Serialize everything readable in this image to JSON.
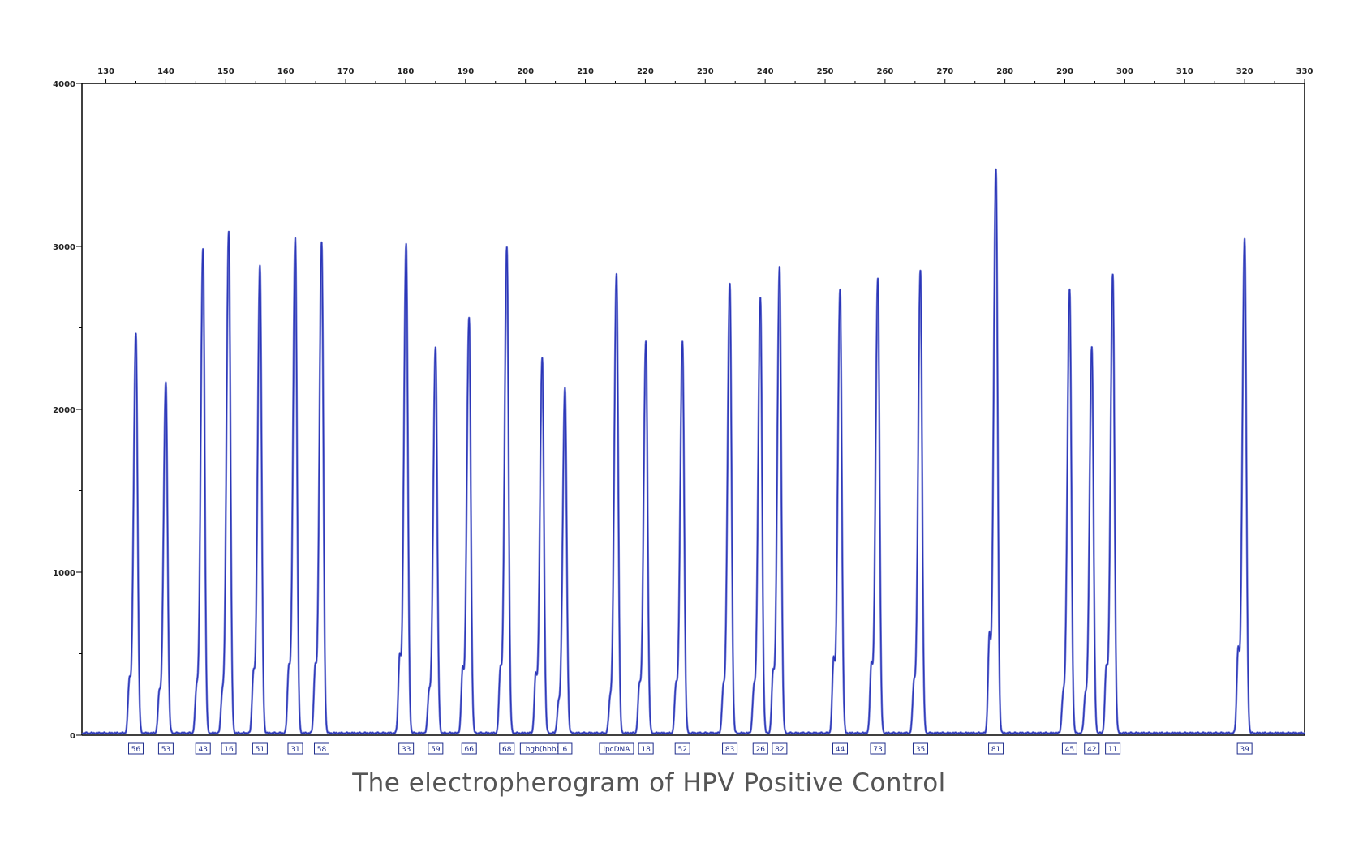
{
  "caption": "The electropherogram of HPV Positive Control",
  "colors": {
    "trace": "#2b36b8",
    "trace_light": "#7f88d8",
    "axis": "#000000",
    "label_box": "#1f2d8c"
  },
  "chart_data": {
    "type": "line",
    "title": "",
    "xlabel": "",
    "ylabel": "",
    "xlim": [
      126,
      330
    ],
    "ylim": [
      0,
      4000
    ],
    "x_ticks": [
      "130",
      "140",
      "150",
      "160",
      "170",
      "180",
      "190",
      "200",
      "210",
      "220",
      "230",
      "240",
      "250",
      "260",
      "270",
      "280",
      "290",
      "300",
      "310",
      "320",
      "330"
    ],
    "y_ticks": [
      "0",
      "1000",
      "2000",
      "3000",
      "4000"
    ],
    "grid": false,
    "baseline": 10,
    "peaks": [
      {
        "label": "56",
        "x": 135.0,
        "height": 2450,
        "shoulder": 300
      },
      {
        "label": "53",
        "x": 140.0,
        "height": 2150,
        "shoulder": 230
      },
      {
        "label": "43",
        "x": 146.2,
        "height": 2970,
        "shoulder": 250
      },
      {
        "label": "16",
        "x": 150.5,
        "height": 3080,
        "shoulder": 220
      },
      {
        "label": "51",
        "x": 155.7,
        "height": 2870,
        "shoulder": 340
      },
      {
        "label": "31",
        "x": 161.6,
        "height": 3040,
        "shoulder": 370
      },
      {
        "label": "58",
        "x": 166.0,
        "height": 3010,
        "shoulder": 370
      },
      {
        "label": "33",
        "x": 180.1,
        "height": 3000,
        "shoulder": 440
      },
      {
        "label": "59",
        "x": 185.0,
        "height": 2370,
        "shoulder": 230
      },
      {
        "label": "66",
        "x": 190.6,
        "height": 2550,
        "shoulder": 360
      },
      {
        "label": "68",
        "x": 196.9,
        "height": 2980,
        "shoulder": 360
      },
      {
        "label": "hgb(hbb)",
        "x": 202.8,
        "height": 2300,
        "shoulder": 330
      },
      {
        "label": "6",
        "x": 206.6,
        "height": 2120,
        "shoulder": 160
      },
      {
        "label": "ipcDNA",
        "x": 215.2,
        "height": 2820,
        "shoulder": 180
      },
      {
        "label": "18",
        "x": 220.1,
        "height": 2400,
        "shoulder": 270
      },
      {
        "label": "52",
        "x": 226.2,
        "height": 2400,
        "shoulder": 270
      },
      {
        "label": "83",
        "x": 234.1,
        "height": 2760,
        "shoulder": 250
      },
      {
        "label": "26",
        "x": 239.2,
        "height": 2670,
        "shoulder": 250
      },
      {
        "label": "82",
        "x": 242.4,
        "height": 2860,
        "shoulder": 340
      },
      {
        "label": "44",
        "x": 252.5,
        "height": 2720,
        "shoulder": 420
      },
      {
        "label": "73",
        "x": 258.8,
        "height": 2790,
        "shoulder": 390
      },
      {
        "label": "35",
        "x": 265.9,
        "height": 2840,
        "shoulder": 280
      },
      {
        "label": "81",
        "x": 278.5,
        "height": 3460,
        "shoulder": 560
      },
      {
        "label": "45",
        "x": 290.8,
        "height": 2720,
        "shoulder": 210
      },
      {
        "label": "42",
        "x": 294.5,
        "height": 2370,
        "shoulder": 210
      },
      {
        "label": "11",
        "x": 298.0,
        "height": 2810,
        "shoulder": 370
      },
      {
        "label": "39",
        "x": 320.0,
        "height": 3030,
        "shoulder": 480
      }
    ]
  }
}
